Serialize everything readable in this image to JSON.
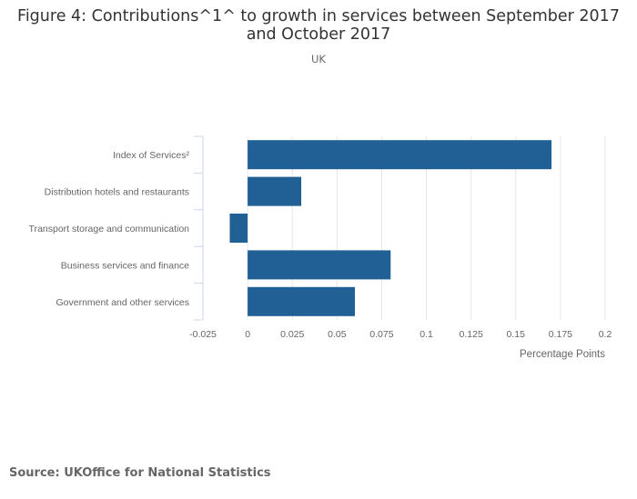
{
  "title": "Figure 4: Contributions^1^ to growth in services between September 2017 and October 2017",
  "subtitle": "UK",
  "source": "Source: UKOffice for National Statistics",
  "chart_data": {
    "type": "bar",
    "orientation": "horizontal",
    "categories": [
      "Index of Services²",
      "Distribution hotels and restaurants",
      "Transport storage and communication",
      "Business services and finance",
      "Government and other services"
    ],
    "values": [
      0.17,
      0.03,
      -0.01,
      0.08,
      0.06
    ],
    "xlabel": "Percentage Points",
    "ylabel": "",
    "xlim": [
      -0.025,
      0.2
    ],
    "xticks": [
      "-0.025",
      "0",
      "0.025",
      "0.05",
      "0.075",
      "0.1",
      "0.125",
      "0.15",
      "0.175",
      "0.2"
    ],
    "grid": "vertical",
    "bar_color": "#206095",
    "legend": "none"
  }
}
